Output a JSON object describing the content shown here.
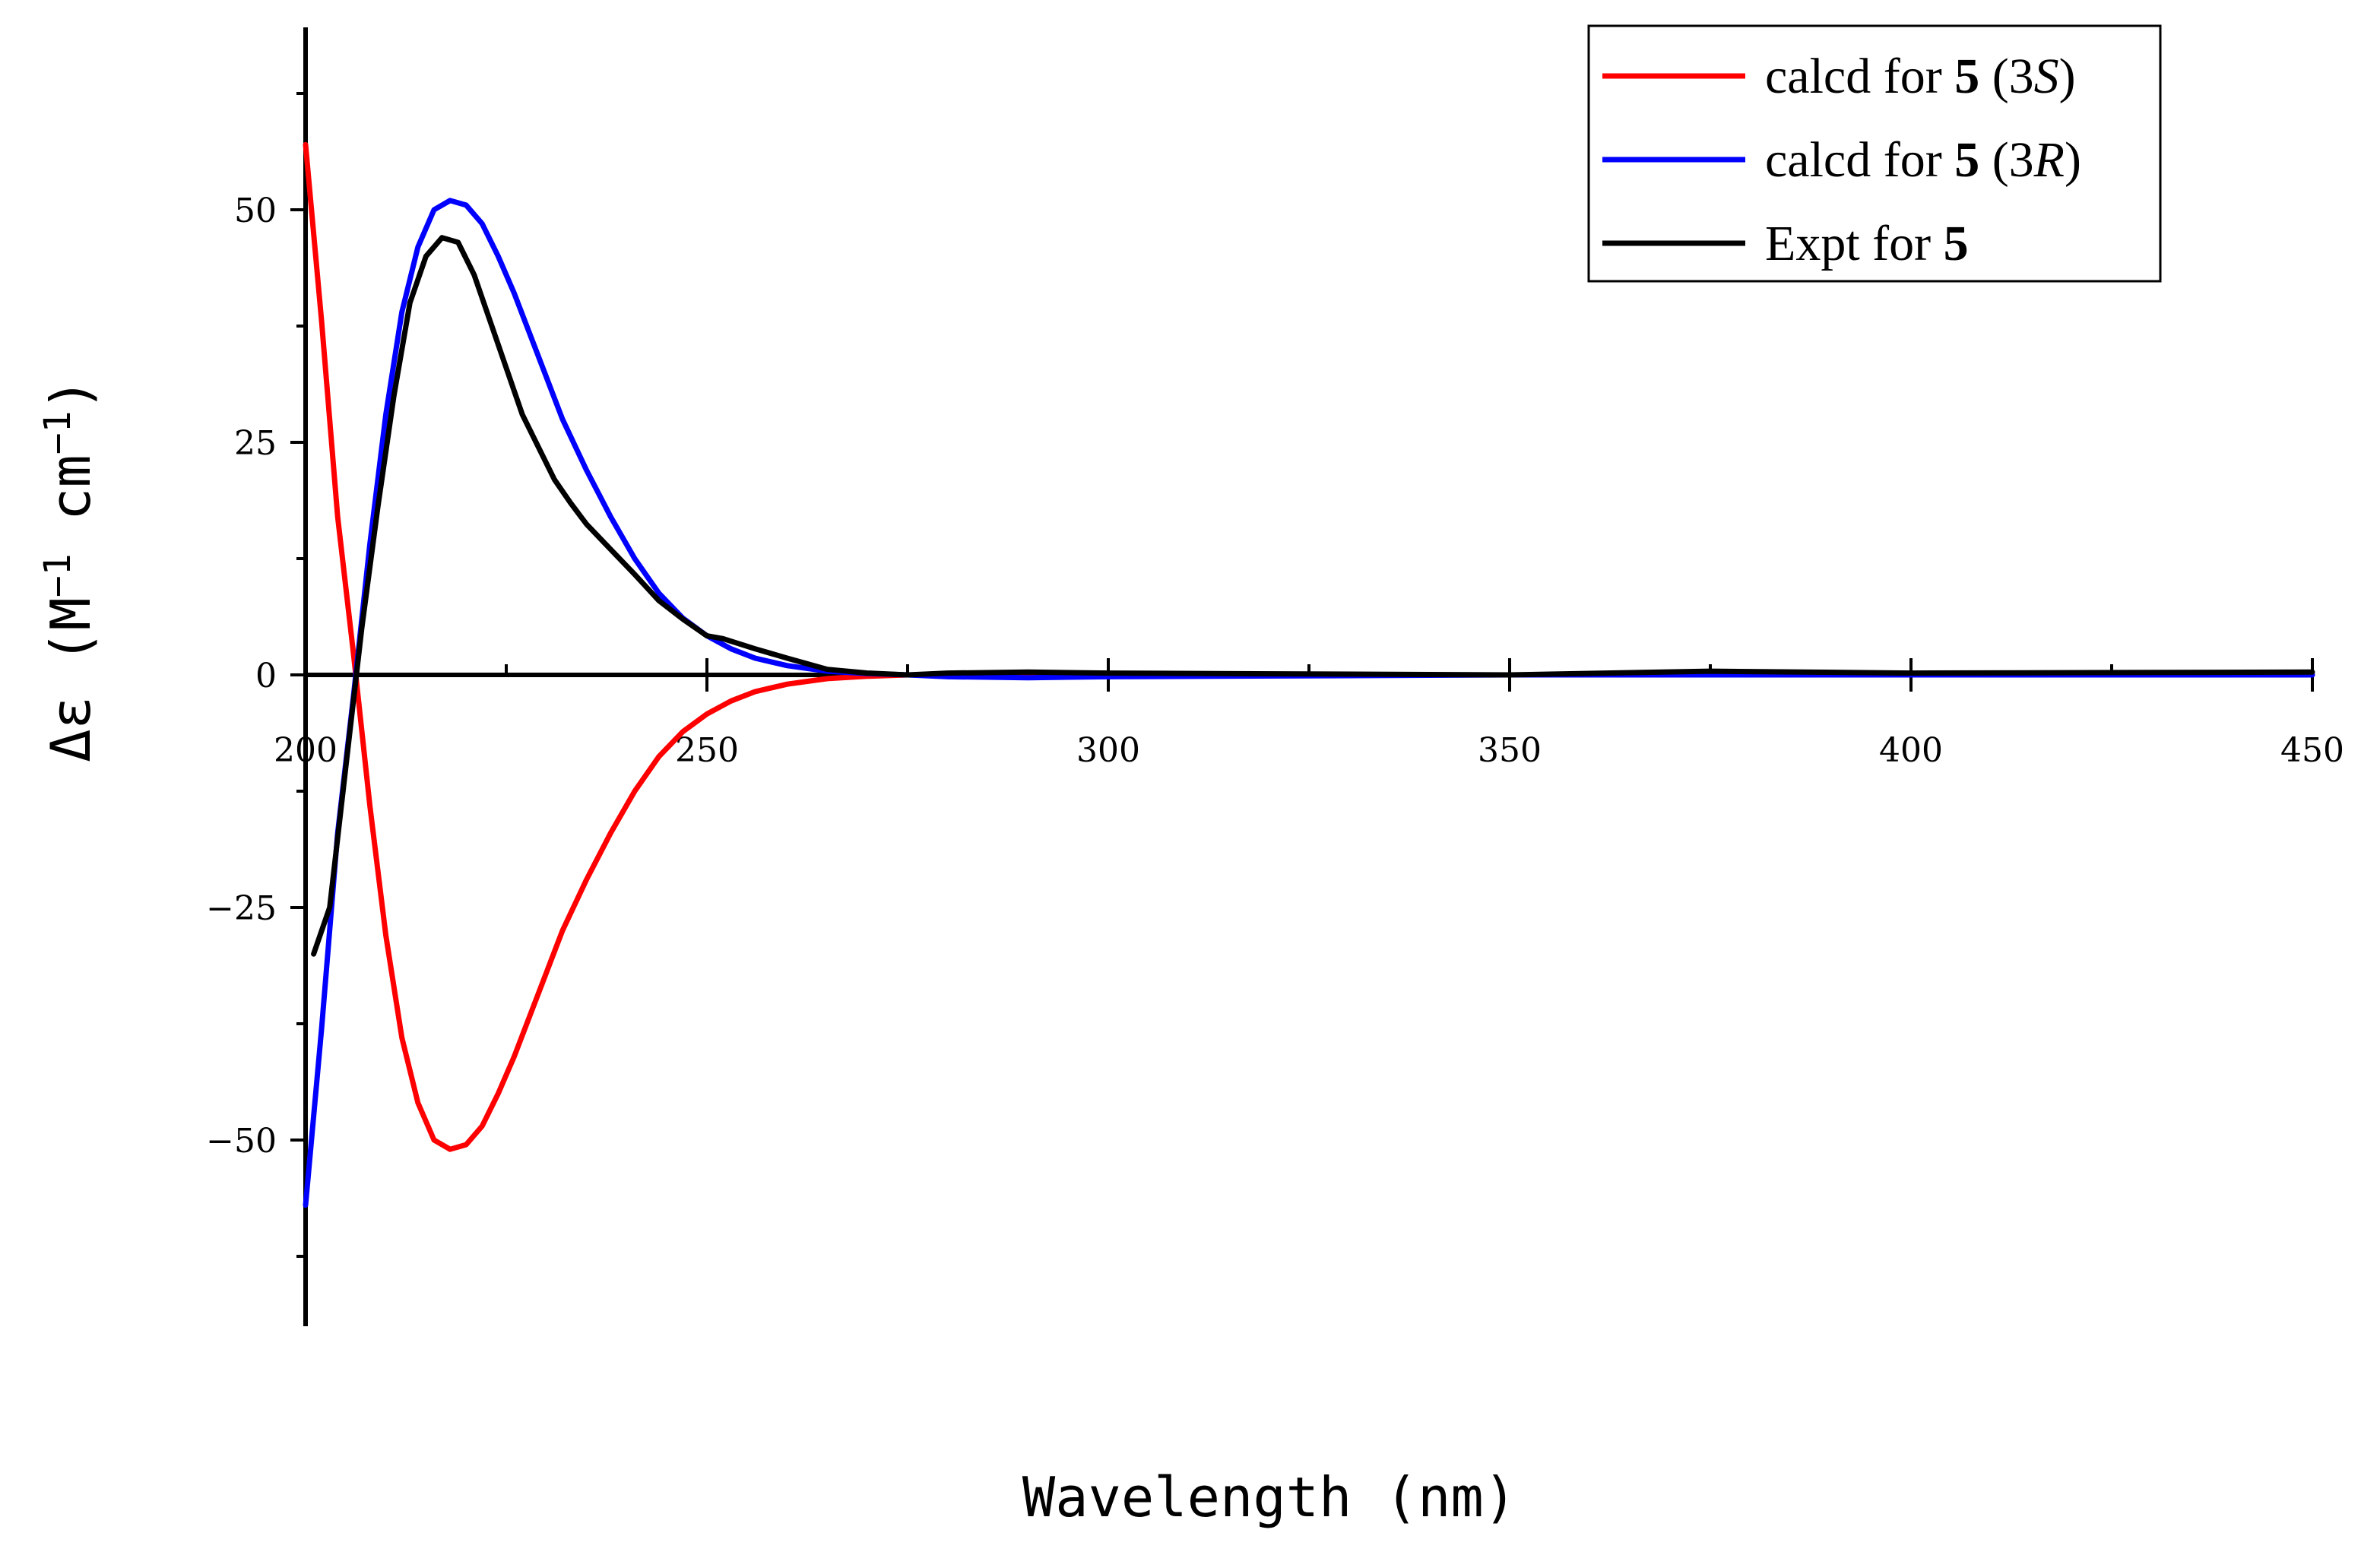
{
  "chart_data": {
    "type": "line",
    "title": "",
    "xlabel": "Wavelength (nm)",
    "ylabel": {
      "prefix": "Δε (M",
      "sup1": "−1",
      "middle": " cm",
      "sup2": "−1",
      "suffix": ")"
    },
    "xlim": [
      200,
      450
    ],
    "ylim": [
      -70,
      70
    ],
    "x_ticks": [
      200,
      250,
      300,
      350,
      400,
      450
    ],
    "x_tick_labels": [
      "200",
      "250",
      "300",
      "350",
      "400",
      "450"
    ],
    "y_ticks": [
      -50,
      -25,
      0,
      25,
      50
    ],
    "y_tick_labels": [
      "−50",
      "−25",
      "0",
      "25",
      "50"
    ],
    "legend_position": "top-right",
    "series": [
      {
        "name": "calcd for 5 (3S)",
        "legend": {
          "text": "calcd for ",
          "bold": "5",
          "open": " (3",
          "italic": "S",
          "close": ")"
        },
        "color": "#ff0000",
        "x": [
          200,
          202,
          204,
          206,
          208,
          210,
          212,
          214,
          216,
          218,
          220,
          222,
          224,
          226,
          228,
          230,
          232,
          235,
          238,
          241,
          244,
          247,
          250,
          253,
          256,
          260,
          265,
          270,
          275,
          280,
          290,
          300,
          350,
          400,
          450
        ],
        "y": [
          57,
          38,
          17,
          2,
          -14,
          -28,
          -39,
          -46,
          -50,
          -51,
          -50.5,
          -48.5,
          -45,
          -41,
          -36.5,
          -32,
          -27.5,
          -22,
          -17,
          -12.5,
          -8.8,
          -6.1,
          -4.2,
          -2.8,
          -1.8,
          -1.0,
          -0.4,
          -0.15,
          0,
          0,
          0,
          0,
          0,
          0,
          0
        ]
      },
      {
        "name": "calcd for 5 (3R)",
        "legend": {
          "text": "calcd for ",
          "bold": "5",
          "open": " (3",
          "italic": "R",
          "close": ")"
        },
        "color": "#0000ff",
        "x": [
          200,
          202,
          204,
          206,
          208,
          210,
          212,
          214,
          216,
          218,
          220,
          222,
          224,
          226,
          228,
          230,
          232,
          235,
          238,
          241,
          244,
          247,
          250,
          253,
          256,
          260,
          265,
          270,
          275,
          280,
          290,
          300,
          350,
          400,
          450
        ],
        "y": [
          -57,
          -38,
          -17,
          -2,
          14,
          28,
          39,
          46,
          50,
          51,
          50.5,
          48.5,
          45,
          41,
          36.5,
          32,
          27.5,
          22,
          17,
          12.5,
          8.8,
          6.1,
          4.2,
          2.8,
          1.8,
          1.0,
          0.4,
          0.15,
          0,
          -0.2,
          -0.3,
          -0.2,
          0,
          0,
          0
        ]
      },
      {
        "name": "Expt for 5",
        "legend": {
          "text": "Expt for ",
          "bold": "5",
          "open": "",
          "italic": "",
          "close": ""
        },
        "color": "#000000",
        "x": [
          201,
          203,
          205,
          207,
          209,
          211,
          213,
          215,
          217,
          219,
          221,
          223,
          225,
          227,
          229,
          231,
          233,
          235,
          238,
          241,
          244,
          247,
          250,
          252,
          256,
          260,
          265,
          270,
          275,
          280,
          290,
          300,
          350,
          375,
          400,
          450
        ],
        "y": [
          -30,
          -25,
          -10,
          5,
          18,
          30,
          40,
          45,
          47,
          46.5,
          43,
          38,
          33,
          28,
          24.5,
          21,
          18.5,
          16.2,
          13.5,
          10.8,
          8,
          6,
          4.2,
          3.9,
          2.8,
          1.8,
          0.6,
          0.2,
          0,
          0.2,
          0.3,
          0.2,
          0,
          0.4,
          0.2,
          0.3
        ]
      }
    ]
  }
}
